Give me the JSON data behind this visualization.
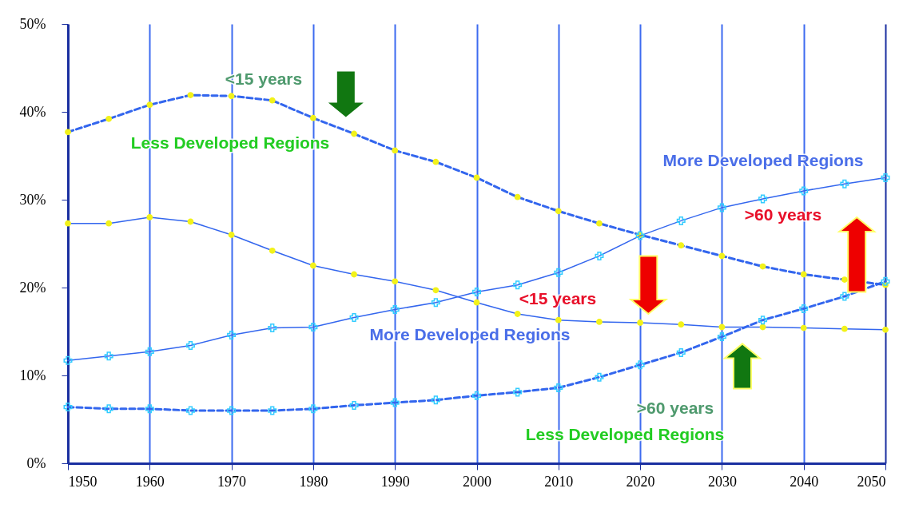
{
  "chart_data": {
    "type": "line",
    "x": [
      1950,
      1955,
      1960,
      1965,
      1970,
      1975,
      1980,
      1985,
      1990,
      1995,
      2000,
      2005,
      2010,
      2015,
      2020,
      2025,
      2030,
      2035,
      2040,
      2045,
      2050
    ],
    "series": [
      {
        "color": "#3366ee",
        "marker": "circle",
        "line_style": "dashed",
        "values": [
          37.7,
          39.2,
          40.8,
          41.9,
          41.8,
          41.3,
          39.3,
          37.5,
          35.6,
          34.3,
          32.5,
          30.3,
          28.7,
          27.3,
          26.0,
          24.8,
          23.6,
          22.4,
          21.5,
          20.9,
          20.3
        ]
      },
      {
        "color": "#3366ee",
        "marker": "circle",
        "line_style": "solid",
        "values": [
          27.3,
          27.3,
          28.0,
          27.5,
          26.0,
          24.2,
          22.5,
          21.5,
          20.7,
          19.7,
          18.3,
          17.0,
          16.3,
          16.1,
          16.0,
          15.8,
          15.5,
          15.5,
          15.4,
          15.3,
          15.2
        ]
      },
      {
        "color": "#3366ee",
        "marker": "cross",
        "line_style": "solid",
        "values": [
          11.7,
          12.2,
          12.7,
          13.4,
          14.6,
          15.4,
          15.5,
          16.6,
          17.5,
          18.3,
          19.5,
          20.3,
          21.7,
          23.6,
          25.9,
          27.6,
          29.1,
          30.1,
          31.0,
          31.8,
          32.5
        ]
      },
      {
        "color": "#3366ee",
        "marker": "cross",
        "line_style": "dashed",
        "values": [
          6.4,
          6.2,
          6.2,
          6.0,
          6.0,
          6.0,
          6.2,
          6.6,
          6.9,
          7.2,
          7.7,
          8.1,
          8.6,
          9.8,
          11.2,
          12.6,
          14.4,
          16.3,
          17.6,
          19.0,
          20.7
        ]
      }
    ],
    "xlim": [
      1950,
      2050
    ],
    "xticks": [
      1950,
      1960,
      1970,
      1980,
      1990,
      2000,
      2010,
      2020,
      2030,
      2040,
      2050
    ],
    "ylim": [
      0,
      50
    ],
    "yticks": [
      {
        "value": 0,
        "label": "0%"
      },
      {
        "value": 10,
        "label": "10%"
      },
      {
        "value": 20,
        "label": "20%"
      },
      {
        "value": 30,
        "label": "30%"
      },
      {
        "value": 40,
        "label": "40%"
      },
      {
        "value": 50,
        "label": "50%"
      }
    ],
    "grid": "x",
    "annotations": [
      "<15 years",
      "Less Developed Regions",
      "More Developed Regions",
      ">60 years",
      "<15 years",
      "More Developed Regions",
      ">60 years",
      "Less Developed Regions"
    ]
  }
}
